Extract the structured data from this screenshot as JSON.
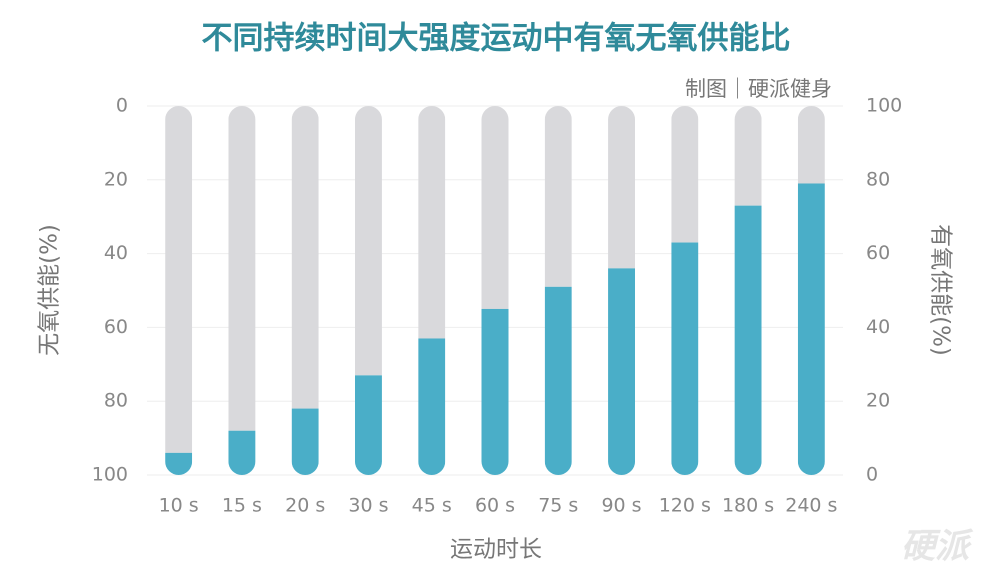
{
  "chart_data": {
    "type": "stacked_bar",
    "title": "不同持续时间大强度运动中有氧无氧供能比",
    "credit": "制图｜硬派健身",
    "watermark": "硬派",
    "x_label": "运动时长",
    "y_label": "无氧供能(%)",
    "y2_label": "有氧供能(%)",
    "categories": [
      "10 s",
      "15 s",
      "20 s",
      "30 s",
      "45 s",
      "60 s",
      "75 s",
      "90 s",
      "120 s",
      "180 s",
      "240 s"
    ],
    "series": [
      {
        "color": "#d9d9dc",
        "values": [
          94,
          88,
          82,
          73,
          63,
          55,
          49,
          44,
          37,
          27,
          21
        ]
      },
      {
        "color": "#4aaec8",
        "axis": "y2",
        "values": [
          6,
          12,
          18,
          27,
          37,
          45,
          51,
          56,
          63,
          73,
          79
        ]
      }
    ],
    "ylim": [
      100,
      0
    ],
    "yticks": [
      0,
      20,
      40,
      60,
      80,
      100
    ],
    "y2lim": [
      0,
      100
    ],
    "y2ticks": [
      0,
      20,
      40,
      60,
      80,
      100
    ],
    "grid": true
  }
}
